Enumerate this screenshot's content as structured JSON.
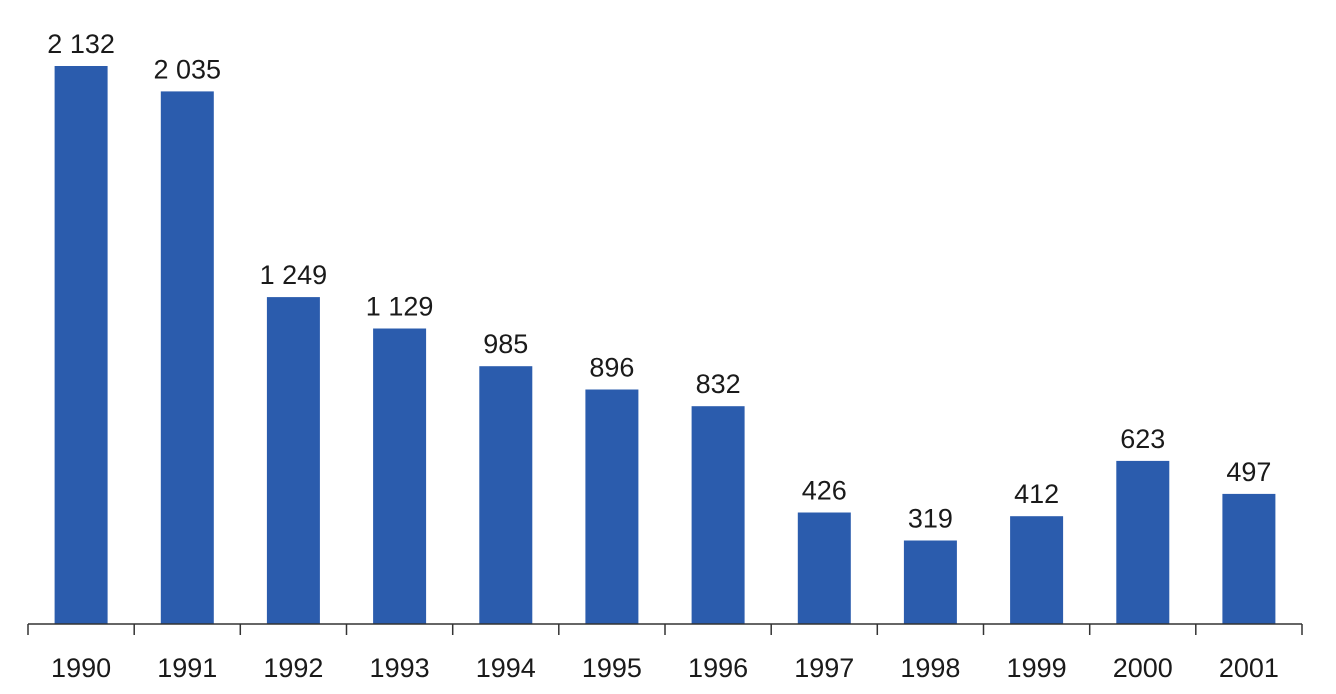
{
  "chart_data": {
    "type": "bar",
    "title": "",
    "xlabel": "",
    "ylabel": "",
    "grid": false,
    "categories": [
      "1990",
      "1991",
      "1992",
      "1993",
      "1994",
      "1995",
      "1996",
      "1997",
      "1998",
      "1999",
      "2000",
      "2001"
    ],
    "values": [
      2132,
      2035,
      1249,
      1129,
      985,
      896,
      832,
      426,
      319,
      412,
      623,
      497
    ],
    "value_labels": [
      "2 132",
      "2 035",
      "1 249",
      "1 129",
      "985",
      "896",
      "832",
      "426",
      "319",
      "412",
      "623",
      "497"
    ],
    "ylim": [
      0,
      2132
    ],
    "bar_color": "#2b5cad",
    "axis_color": "#333333"
  }
}
